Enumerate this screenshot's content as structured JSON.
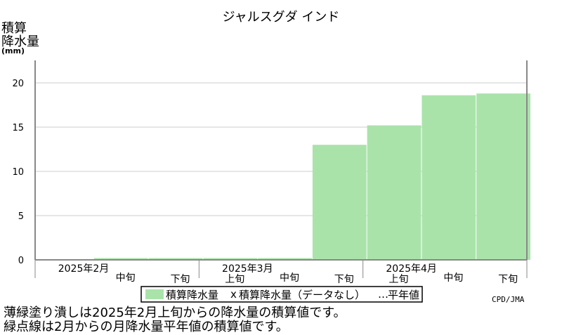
{
  "header": {
    "title": "ジャルスグダ インド",
    "ylabel_lines": [
      "積算",
      "降水量"
    ],
    "yunit": "(mm)"
  },
  "legend": {
    "item1": "積算降水量",
    "item2_marker": "x",
    "item2": "積算降水量（データなし）",
    "item3_marker": "…",
    "item3": "平年値"
  },
  "footer": {
    "credit": "CPD/JMA",
    "note1": "薄緑塗り潰しは2025年2月上旬からの降水量の積算値です。",
    "note2": "緑点線は2月からの月降水量平年値の積算値です。"
  },
  "chart_data": {
    "type": "area",
    "ylim": [
      0,
      22
    ],
    "yticks": [
      0,
      5,
      10,
      15,
      20
    ],
    "grid": true,
    "month_labels": [
      "2025年2月",
      "2025年3月",
      "2025年4月"
    ],
    "period_labels": [
      "中旬",
      "下旬",
      "上旬",
      "中旬",
      "下旬",
      "上旬",
      "中旬",
      "下旬"
    ],
    "series": [
      {
        "name": "積算降水量",
        "color": "#aae3aa",
        "values": [
          0.2,
          0.2,
          0.2,
          0.2,
          13.0,
          15.2,
          18.6,
          18.8
        ]
      }
    ],
    "colors": {
      "fill": "#aae3aa",
      "grid": "#cccccc",
      "axis": "#888888"
    }
  }
}
